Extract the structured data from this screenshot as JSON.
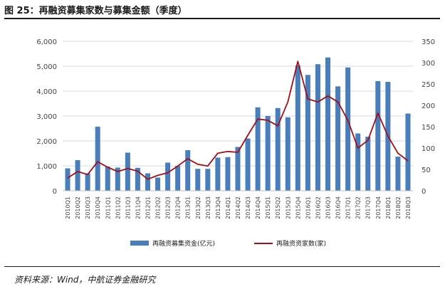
{
  "figure": {
    "title": "图 25：再融资募集家数与募集金额（季度）",
    "source": "资料来源：Wind，中航证券金融研究"
  },
  "colors": {
    "bar": "#4a7ebb",
    "line": "#a40f17",
    "grid": "#d9d9d9"
  },
  "chart_data": {
    "type": "bar",
    "categories": [
      "2010Q1",
      "2010Q2",
      "2010Q3",
      "2010Q4",
      "2011Q1",
      "2011Q2",
      "2011Q3",
      "2011Q4",
      "2012Q1",
      "2012Q2",
      "2012Q3",
      "2012Q4",
      "2013Q1",
      "2013Q2",
      "2013Q3",
      "2013Q4",
      "2014Q1",
      "2014Q2",
      "2014Q3",
      "2014Q4",
      "2015Q1",
      "2015Q2",
      "2015Q3",
      "2015Q4",
      "2016Q1",
      "2016Q2",
      "2016Q3",
      "2016Q4",
      "2017Q1",
      "2017Q2",
      "2017Q3",
      "2017Q4",
      "2018Q1",
      "2018Q2",
      "2018Q3"
    ],
    "series": [
      {
        "name": "再融资募集资金(亿元)",
        "type": "bar",
        "axis": "left",
        "values": [
          900,
          1230,
          700,
          2570,
          970,
          930,
          1530,
          920,
          700,
          530,
          1130,
          1000,
          1630,
          880,
          880,
          1330,
          1350,
          1760,
          2100,
          3350,
          3000,
          3320,
          2950,
          5030,
          4650,
          5080,
          5350,
          4190,
          4950,
          2300,
          2170,
          4400,
          4370,
          1370,
          3100
        ]
      },
      {
        "name": "再融资资家数(家)",
        "type": "line",
        "axis": "right",
        "values": [
          30,
          45,
          38,
          68,
          55,
          45,
          52,
          46,
          27,
          36,
          42,
          58,
          75,
          62,
          58,
          88,
          92,
          90,
          130,
          168,
          165,
          152,
          208,
          303,
          215,
          208,
          222,
          208,
          165,
          100,
          118,
          182,
          128,
          88,
          70
        ]
      }
    ],
    "ylim_left": [
      0,
      6000
    ],
    "yticks_left": [
      "0",
      "1,000",
      "2,000",
      "3,000",
      "4,000",
      "5,000",
      "6,000"
    ],
    "ylim_right": [
      0,
      350
    ],
    "yticks_right": [
      "0",
      "50",
      "100",
      "150",
      "200",
      "250",
      "300",
      "350"
    ],
    "grid": true,
    "legend": "bottom"
  }
}
